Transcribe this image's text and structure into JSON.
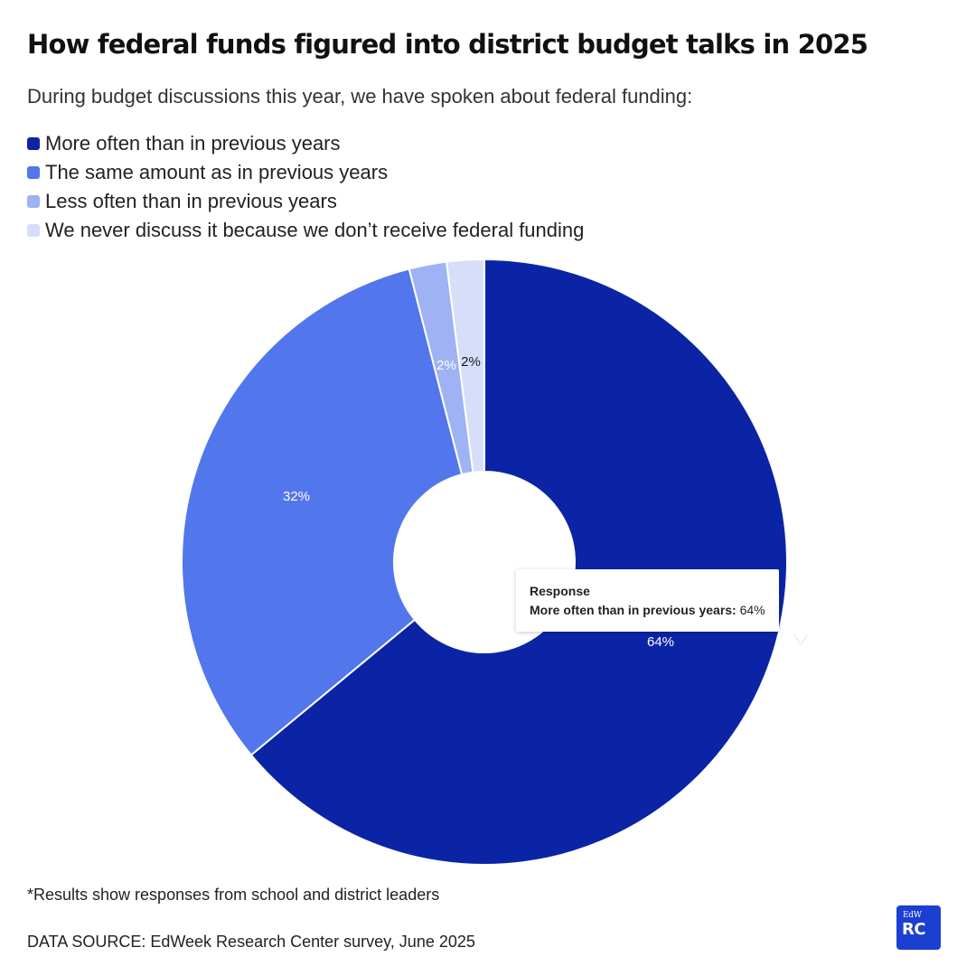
{
  "header": {
    "title": "How federal funds figured into district budget talks in 2025",
    "subtitle": "During budget discussions this year, we have spoken about federal funding:"
  },
  "chart_data": {
    "type": "pie",
    "variant": "donut",
    "title": "How federal funds figured into district budget talks in 2025",
    "subtitle": "During budget discussions this year, we have spoken about federal funding:",
    "unit": "%",
    "legend_position": "top-left",
    "categories": [
      "More often than in previous years",
      "The same amount as in previous years",
      "Less often than in previous years",
      "We never discuss it because we don’t receive federal funding"
    ],
    "values": [
      64,
      32,
      2,
      2
    ],
    "labels": [
      "64%",
      "32%",
      "2%",
      "2%"
    ],
    "colors": [
      "#0b24a6",
      "#5276ec",
      "#9eb2f4",
      "#d6def9"
    ],
    "label_colors": [
      "#ffffff",
      "#ffffff",
      "#ffffff",
      "#1a1a1a"
    ]
  },
  "tooltip": {
    "heading": "Response",
    "row_label": "More often than in previous years:",
    "row_value": "64%"
  },
  "footer": {
    "note": "*Results show responses from school and district leaders",
    "source": "DATA SOURCE: EdWeek Research Center survey, June 2025"
  },
  "logo": {
    "top_text": "EdW",
    "bottom_text": "RC"
  }
}
